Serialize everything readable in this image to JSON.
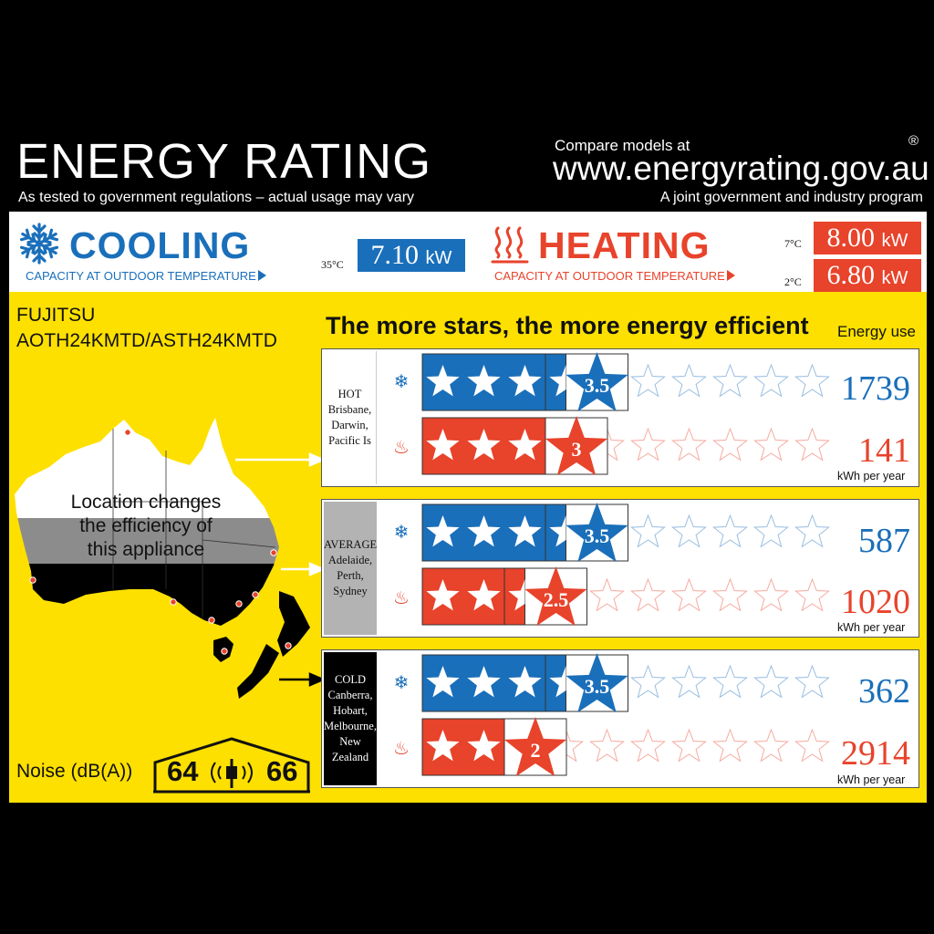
{
  "header": {
    "title": "ENERGY RATING",
    "subtitle": "As tested to government regulations – actual usage may vary",
    "compare": "Compare models at",
    "url": "www.energyrating.gov.au",
    "registered": "®",
    "joint": "A joint government and industry program"
  },
  "cooling": {
    "title": "COOLING",
    "capacity_label": "CAPACITY AT OUTDOOR TEMPERATURE",
    "temp": "35°C",
    "value": "7.10",
    "unit": "kW"
  },
  "heating": {
    "title": "HEATING",
    "capacity_label": "CAPACITY AT OUTDOOR TEMPERATURE",
    "temp1": "7°C",
    "value1": "8.00",
    "temp2": "2°C",
    "value2": "6.80",
    "unit": "kW"
  },
  "product": {
    "brand": "FUJITSU",
    "model": "AOTH24KMTD/ASTH24KMTD"
  },
  "headline": "The more stars, the more energy efficient",
  "energy_use_label": "Energy use",
  "kwh_label": "kWh per year",
  "map_text": [
    "Location changes",
    "the efficiency of",
    "this appliance"
  ],
  "zones": [
    {
      "name": "HOT",
      "cities": [
        "Brisbane,",
        "Darwin,",
        "Pacific Is"
      ],
      "cool_stars": 3.5,
      "cool_label": "3.5",
      "cool_use": "1739",
      "heat_stars": 3,
      "heat_label": "3",
      "heat_use": "141"
    },
    {
      "name": "AVERAGE",
      "cities": [
        "Adelaide,",
        "Perth,",
        "Sydney"
      ],
      "cool_stars": 3.5,
      "cool_label": "3.5",
      "cool_use": "587",
      "heat_stars": 2.5,
      "heat_label": "2.5",
      "heat_use": "1020"
    },
    {
      "name": "COLD",
      "cities": [
        "Canberra,",
        "Hobart,",
        "Melbourne,",
        "New Zealand"
      ],
      "cool_stars": 3.5,
      "cool_label": "3.5",
      "cool_use": "362",
      "heat_stars": 2,
      "heat_label": "2",
      "heat_use": "2914"
    }
  ],
  "noise": {
    "label": "Noise (dB(A))",
    "indoor": "64",
    "outdoor": "66"
  },
  "colors": {
    "cool": "#1a6fba",
    "heat": "#e8432b",
    "yellow": "#fde000",
    "average_zone": "#b3b3b3",
    "cold_zone": "#000000"
  }
}
